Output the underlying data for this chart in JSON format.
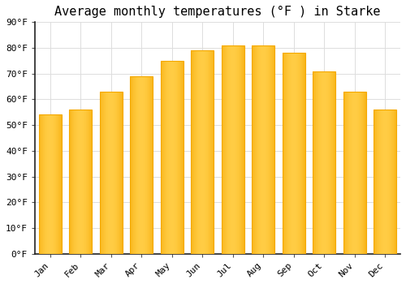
{
  "title": "Average monthly temperatures (°F ) in Starke",
  "months": [
    "Jan",
    "Feb",
    "Mar",
    "Apr",
    "May",
    "Jun",
    "Jul",
    "Aug",
    "Sep",
    "Oct",
    "Nov",
    "Dec"
  ],
  "values": [
    54,
    56,
    63,
    69,
    75,
    79,
    81,
    81,
    78,
    71,
    63,
    56
  ],
  "bar_color_center": "#FFCC44",
  "bar_color_edge": "#F5A800",
  "ylim": [
    0,
    90
  ],
  "yticks": [
    0,
    10,
    20,
    30,
    40,
    50,
    60,
    70,
    80,
    90
  ],
  "ytick_labels": [
    "0°F",
    "10°F",
    "20°F",
    "30°F",
    "40°F",
    "50°F",
    "60°F",
    "70°F",
    "80°F",
    "90°F"
  ],
  "background_color": "#ffffff",
  "grid_color": "#dddddd",
  "title_fontsize": 11,
  "tick_fontsize": 8,
  "font_family": "monospace",
  "bar_width": 0.75
}
